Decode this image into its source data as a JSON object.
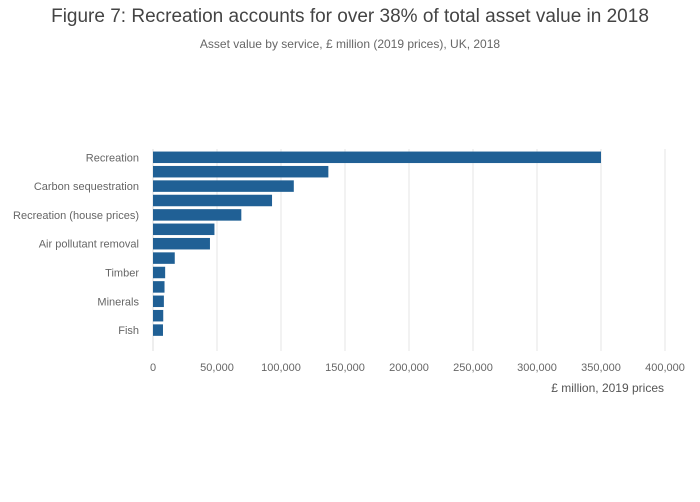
{
  "title": "Figure 7: Recreation accounts for over 38% of total asset value in 2018",
  "subtitle": "Asset value by service, £ million (2019 prices), UK, 2018",
  "chart_data": {
    "type": "bar",
    "orientation": "horizontal",
    "categories": [
      "Recreation",
      "",
      "Carbon sequestration",
      "",
      "Recreation (house prices)",
      "",
      "Air pollutant removal",
      "",
      "Timber",
      "",
      "Minerals",
      "",
      "Fish"
    ],
    "values": [
      350000,
      137000,
      110000,
      93000,
      69000,
      48000,
      44500,
      17000,
      9500,
      9000,
      8500,
      8000,
      7800
    ],
    "xlabel": "£ million, 2019 prices",
    "ylabel": "",
    "xlim": [
      0,
      400000
    ],
    "x_ticks": [
      0,
      50000,
      100000,
      150000,
      200000,
      250000,
      300000,
      350000,
      400000
    ],
    "x_tick_labels": [
      "0",
      "50,000",
      "100,000",
      "150,000",
      "200,000",
      "250,000",
      "300,000",
      "350,000",
      "400,000"
    ],
    "grid": "vertical",
    "legend": "none",
    "bar_color": "#206095",
    "grid_color": "#e6e6e6"
  }
}
